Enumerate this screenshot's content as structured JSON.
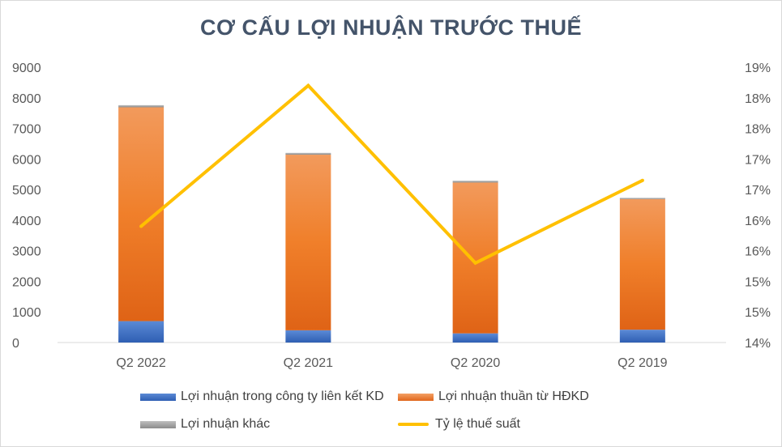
{
  "chart_data": {
    "type": "bar",
    "stacked": true,
    "title": "CƠ CẤU LỢI NHUẬN TRƯỚC THUẾ",
    "categories": [
      "Q2 2022",
      "Q2 2021",
      "Q2 2020",
      "Q2 2019"
    ],
    "series": [
      {
        "name": "Lợi nhuận trong công ty liên kết KD",
        "type": "bar",
        "axis": "left",
        "color": "#4472c4",
        "values": [
          700,
          400,
          300,
          420
        ]
      },
      {
        "name": "Lợi nhuận thuần từ HĐKD",
        "type": "bar",
        "axis": "left",
        "color": "#ed7d31",
        "values": [
          6990,
          5740,
          4930,
          4270
        ]
      },
      {
        "name": "Lợi nhuận khác",
        "type": "bar",
        "axis": "left",
        "color": "#a5a5a5",
        "values": [
          70,
          60,
          60,
          40
        ]
      },
      {
        "name": "Tỷ lệ thuế suất",
        "type": "line",
        "axis": "right",
        "color": "#ffc000",
        "values": [
          0.159,
          0.182,
          0.153,
          0.1665
        ]
      }
    ],
    "y_left": {
      "ylim": [
        0,
        9000
      ],
      "ticks": [
        "0",
        "1000",
        "2000",
        "3000",
        "4000",
        "5000",
        "6000",
        "7000",
        "8000",
        "9000"
      ]
    },
    "y_right": {
      "ylim": [
        0.14,
        0.185
      ],
      "ticks": [
        "14%",
        "15%",
        "15%",
        "16%",
        "16%",
        "17%",
        "17%",
        "18%",
        "18%",
        "19%"
      ]
    },
    "grid": false,
    "legend_position": "bottom"
  },
  "colors": {
    "title": "#44546a",
    "axis": "#d9d9d9",
    "text": "#595959"
  }
}
